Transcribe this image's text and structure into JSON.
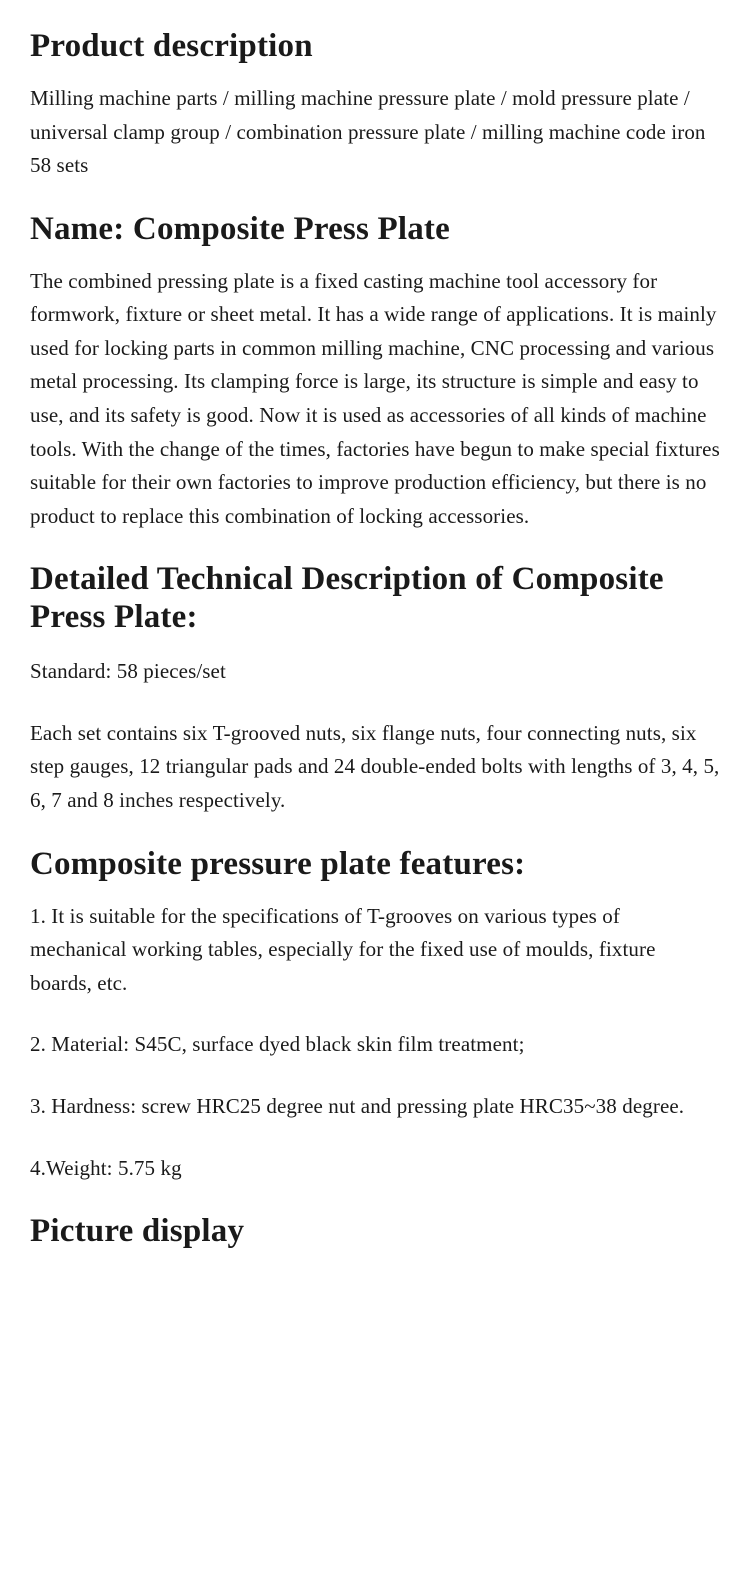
{
  "doc": {
    "text_color": "#1a1a1a",
    "background_color": "#ffffff",
    "heading_fontsize": 33,
    "body_fontsize": 21,
    "font_family": "Georgia, 'Times New Roman', serif",
    "sections": [
      {
        "heading": "Product description",
        "paragraphs": [
          "Milling machine parts / milling machine pressure plate / mold pressure plate / universal clamp group / combination pressure plate / milling machine code iron 58 sets"
        ]
      },
      {
        "heading": "Name: Composite Press Plate",
        "paragraphs": [
          "The combined pressing plate is a fixed casting machine tool accessory for formwork, fixture or sheet metal. It has a wide range of applications. It is mainly used for locking parts in common milling machine, CNC processing and various metal processing. Its clamping force is large, its structure is simple and easy to use, and its safety is good. Now it is used as accessories of all kinds of machine tools. With the change of the times, factories have begun to make special fixtures suitable for their own factories to improve production efficiency, but there is no product to replace this combination of locking accessories."
        ]
      },
      {
        "heading": "Detailed Technical Description of Composite Press Plate:",
        "paragraphs": [
          "Standard: 58 pieces/set",
          "Each set contains six T-grooved nuts, six flange nuts, four connecting nuts, six step gauges, 12 triangular pads and 24 double-ended bolts with lengths of 3, 4, 5, 6, 7 and 8 inches respectively."
        ]
      },
      {
        "heading": "Composite pressure plate features:",
        "paragraphs": [
          "1. It is suitable for the specifications of T-grooves on various types of mechanical working tables, especially for the fixed use of moulds, fixture boards, etc.",
          "2. Material: S45C, surface dyed black skin film treatment;",
          "3. Hardness: screw HRC25 degree nut and pressing plate HRC35~38 degree.",
          "4.Weight: 5.75 kg"
        ]
      },
      {
        "heading": "Picture display",
        "paragraphs": []
      }
    ]
  }
}
